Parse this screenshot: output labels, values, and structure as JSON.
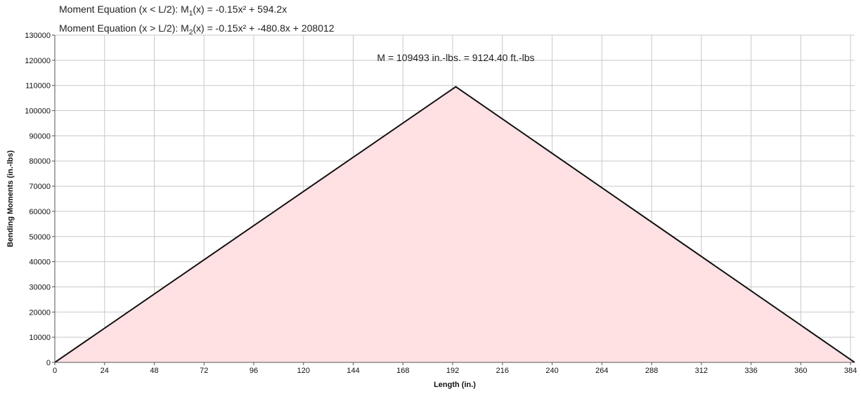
{
  "equations": {
    "line1": {
      "prefix": "Moment Equation (x < L/2):  M",
      "sub": "1",
      "suffix": "(x) = -0.15x² + 594.2x"
    },
    "line2": {
      "prefix": "Moment Equation (x > L/2):  M",
      "sub": "2",
      "suffix": "(x) = -0.15x² + -480.8x + 208012"
    }
  },
  "chart_data": {
    "type": "area",
    "xlabel": "Length (in.)",
    "ylabel": "Bending Moments (in.-lbs)",
    "annotation": "M = 109493 in.-lbs. = 9124.40 ft.-lbs",
    "xlim": [
      0,
      386
    ],
    "ylim": [
      0,
      130000
    ],
    "x_ticks": [
      0,
      24,
      48,
      72,
      96,
      120,
      144,
      168,
      192,
      216,
      240,
      264,
      288,
      312,
      336,
      360,
      384
    ],
    "y_ticks": [
      0,
      10000,
      20000,
      30000,
      40000,
      50000,
      60000,
      70000,
      80000,
      90000,
      100000,
      110000,
      120000,
      130000
    ],
    "grid": true,
    "series": [
      {
        "x": [
          0,
          193.5,
          386
        ],
        "y": [
          0,
          109493,
          0
        ]
      }
    ],
    "colors": {
      "line": "#111111",
      "fill": "#ffe0e3",
      "grid": "#c8c8c8",
      "axis": "#555555"
    }
  }
}
